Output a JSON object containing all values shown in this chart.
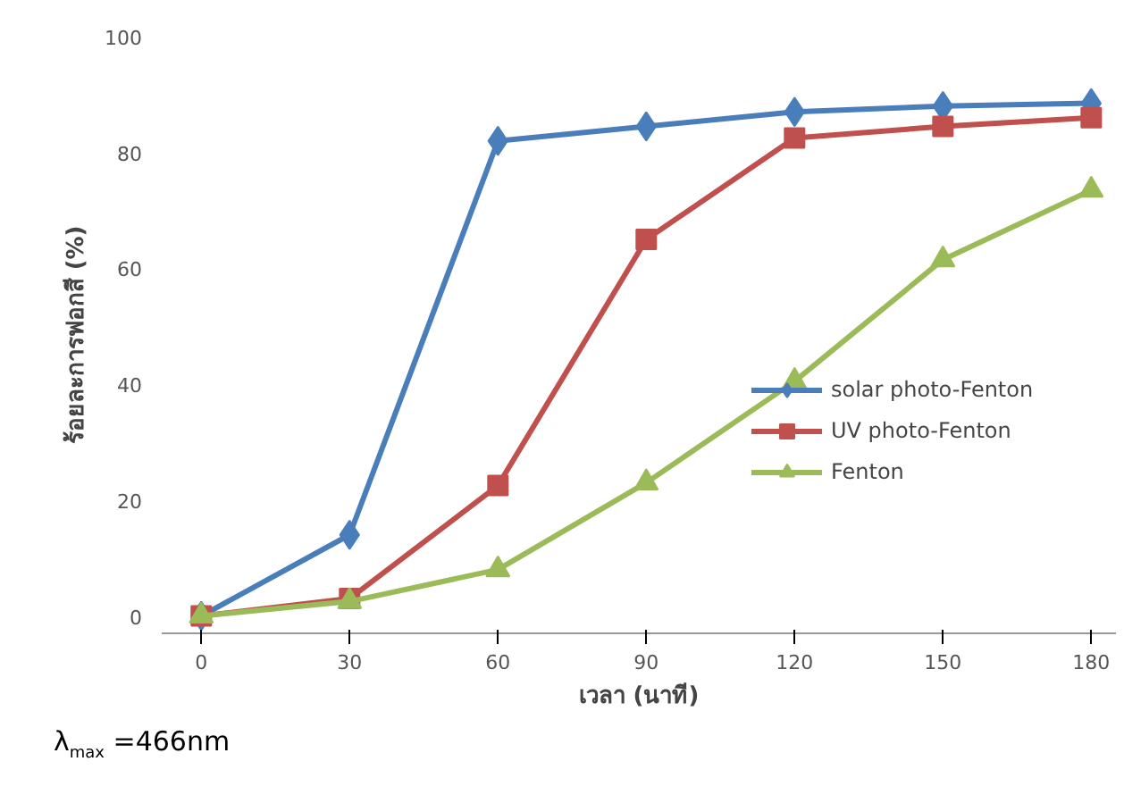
{
  "chart_data": {
    "type": "line",
    "xlabel": "เวลา (นาที)",
    "ylabel": "ร้อยละการฟอกสี (%)",
    "x": [
      0,
      30,
      60,
      90,
      120,
      150,
      180
    ],
    "series": [
      {
        "name": "solar photo-Fenton",
        "color": "#4a7ebb",
        "marker": "diamond",
        "values": [
          0,
          14,
          82,
          84.5,
          87,
          88,
          88.5
        ]
      },
      {
        "name": "UV photo-Fenton",
        "color": "#c0504d",
        "marker": "square",
        "values": [
          0,
          3,
          22.5,
          65,
          82.5,
          84.5,
          86
        ]
      },
      {
        "name": "Fenton",
        "color": "#9bbb59",
        "marker": "triangle",
        "values": [
          0,
          2.5,
          8,
          23,
          40.5,
          61.5,
          73.5
        ]
      }
    ],
    "xlim": [
      -8,
      185
    ],
    "ylim": [
      -3,
      100
    ],
    "xticks": [
      0,
      30,
      60,
      90,
      120,
      150,
      180
    ],
    "yticks": [
      0,
      20,
      40,
      60,
      80,
      100
    ],
    "grid": false,
    "legend": "right",
    "line_style": "solid",
    "annotations": [
      "λ$_{max}$ =466nm"
    ]
  }
}
